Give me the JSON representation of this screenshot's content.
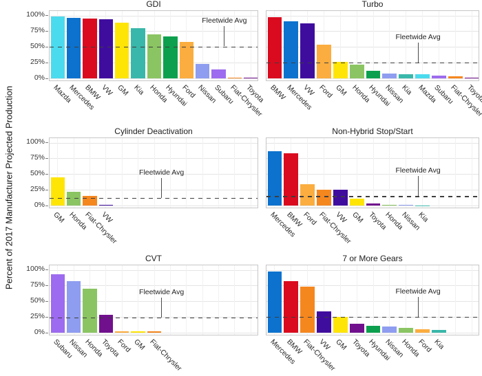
{
  "figure": {
    "y_axis_title": "Percent of 2017 Manufacturer Projected Production",
    "y_tick_values": [
      0,
      25,
      50,
      75,
      100
    ],
    "y_tick_labels": [
      "0%",
      "25%",
      "50%",
      "75%",
      "100%"
    ]
  },
  "colors": {
    "Mazda": "#4bdbee",
    "Mercedes": "#0c72ce",
    "BMW": "#da0b1f",
    "VW": "#3f0d9e",
    "GM": "#ffe506",
    "Kia": "#39b7aa",
    "Honda": "#8bc563",
    "Hyundai": "#0ca04e",
    "Ford": "#fbad3f",
    "Nissan": "#8e9df0",
    "Subaru": "#9d6bef",
    "Fiat-Chrysler": "#f5871f",
    "Toyota": "#71108d"
  },
  "chart_data": [
    {
      "type": "bar",
      "title": "GDI",
      "categories": [
        "Mazda",
        "Mercedes",
        "BMW",
        "VW",
        "GM",
        "Kia",
        "Honda",
        "Hyundai",
        "Ford",
        "Nissan",
        "Subaru",
        "Fiat-Chrysler",
        "Toyota"
      ],
      "values": [
        99,
        97,
        95.5,
        94,
        89,
        80,
        71,
        67,
        59,
        24,
        15,
        2,
        1.5
      ],
      "fleetwide_avg": 50.5,
      "annotation_label": "Fleetwide Avg",
      "annotation_x_frac": 0.835,
      "ylim": [
        0,
        100
      ],
      "grid": true,
      "show_y_labels": true,
      "legend": "none"
    },
    {
      "type": "bar",
      "title": "Turbo",
      "categories": [
        "BMW",
        "Mercedes",
        "VW",
        "Ford",
        "GM",
        "Honda",
        "Hyundai",
        "Nissan",
        "Kia",
        "Mazda",
        "Subaru",
        "Fiat-Chrysler",
        "Toyota"
      ],
      "values": [
        98,
        91,
        88,
        54,
        27,
        22,
        13,
        8,
        7,
        7,
        4.5,
        3.5,
        2
      ],
      "fleetwide_avg": 25,
      "annotation_label": "Fleetwide Avg",
      "annotation_x_frac": 0.71,
      "ylim": [
        0,
        100
      ],
      "grid": true,
      "show_y_labels": false,
      "legend": "none"
    },
    {
      "type": "bar",
      "title": "Cylinder Deactivation",
      "categories": [
        "GM",
        "Honda",
        "Fiat-Chrysler",
        "VW"
      ],
      "values": [
        45,
        22,
        16,
        2
      ],
      "fleetwide_avg": 12,
      "annotation_label": "Fleetwide Avg",
      "annotation_x_frac": 0.535,
      "ylim": [
        0,
        100
      ],
      "grid": true,
      "show_y_labels": true,
      "legend": "none"
    },
    {
      "type": "bar",
      "title": "Non-Hybrid Stop/Start",
      "categories": [
        "Mercedes",
        "BMW",
        "Ford",
        "Fiat-Chrysler",
        "VW",
        "GM",
        "Toyota",
        "Honda",
        "Nissan",
        "Kia"
      ],
      "values": [
        87,
        84,
        34,
        26,
        26,
        12,
        4,
        2,
        1.5,
        0.4
      ],
      "fleetwide_avg": 15,
      "annotation_label": "Fleetwide Avg",
      "annotation_x_frac": 0.71,
      "ylim": [
        0,
        100
      ],
      "grid": true,
      "show_y_labels": false,
      "legend": "none"
    },
    {
      "type": "bar",
      "title": "CVT",
      "categories": [
        "Subaru",
        "Nissan",
        "Honda",
        "Toyota",
        "Ford",
        "GM",
        "Fiat-Chrysler"
      ],
      "values": [
        93,
        82,
        71,
        29,
        3,
        3,
        3
      ],
      "fleetwide_avg": 24,
      "annotation_label": "Fleetwide Avg",
      "annotation_x_frac": 0.535,
      "ylim": [
        0,
        100
      ],
      "grid": true,
      "show_y_labels": true,
      "legend": "none"
    },
    {
      "type": "bar",
      "title": "7 or More Gears",
      "categories": [
        "Mercedes",
        "BMW",
        "Fiat-Chrysler",
        "VW",
        "GM",
        "Toyota",
        "Hyundai",
        "Nissan",
        "Honda",
        "Ford",
        "Kia"
      ],
      "values": [
        98,
        83,
        74,
        34,
        26,
        15,
        11,
        10,
        8,
        6,
        5
      ],
      "fleetwide_avg": 25,
      "annotation_label": "Fleetwide Avg",
      "annotation_x_frac": 0.71,
      "ylim": [
        0,
        100
      ],
      "grid": true,
      "show_y_labels": false,
      "legend": "none"
    }
  ]
}
